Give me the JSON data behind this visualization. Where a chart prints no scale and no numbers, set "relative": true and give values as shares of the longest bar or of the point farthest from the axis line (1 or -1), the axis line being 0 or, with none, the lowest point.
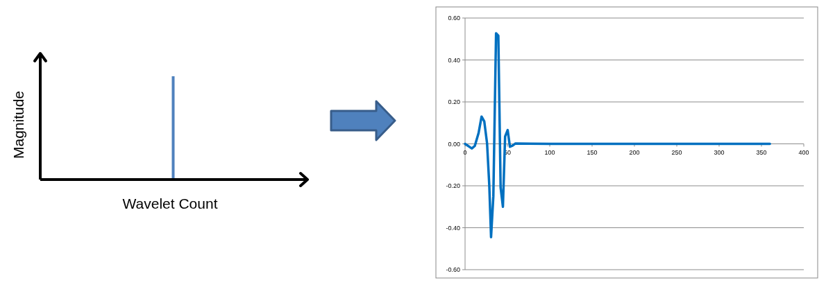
{
  "chart_data": [
    {
      "type": "bar",
      "xlabel": "Wavelet Count",
      "ylabel": "Magnitude",
      "relative": true,
      "color": "#4f81bd",
      "categories": [
        null
      ],
      "values": [
        1
      ]
    },
    {
      "type": "line",
      "color": "#0070c0",
      "grid": "y",
      "xlim": [
        0,
        400
      ],
      "xticks": [
        0,
        50,
        100,
        150,
        200,
        250,
        300,
        350,
        400
      ],
      "ylim": [
        -0.6,
        0.6
      ],
      "yticks": [
        {
          "value": -0.6,
          "label": "-0.60"
        },
        {
          "value": -0.4,
          "label": "-0.40"
        },
        {
          "value": -0.2,
          "label": "-0.20"
        },
        {
          "value": 0,
          "label": "0.00"
        },
        {
          "value": 0.2,
          "label": "0.20"
        },
        {
          "value": 0.4,
          "label": "0.40"
        },
        {
          "value": 0.6,
          "label": "0.60"
        }
      ],
      "x": [
        0,
        8,
        11.5,
        16,
        19.5,
        22.7,
        26,
        28.6,
        30.7,
        33.4,
        36.6,
        39.3,
        42,
        44.7,
        47.3,
        50.3,
        53,
        56,
        59.6,
        100,
        200,
        300,
        360
      ],
      "values": [
        0,
        -0.022,
        -0.01,
        0.052,
        0.13,
        0.107,
        0.002,
        -0.197,
        -0.445,
        -0.25,
        0.527,
        0.516,
        -0.208,
        -0.3,
        0.035,
        0.066,
        -0.014,
        -0.009,
        0.002,
        0,
        0,
        0,
        0
      ]
    }
  ]
}
